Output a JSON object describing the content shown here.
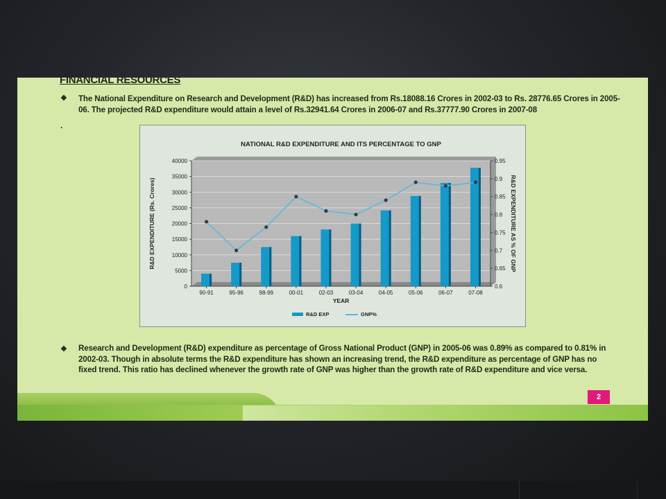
{
  "slide": {
    "heading": "FINANCIAL RESOURCES",
    "bullet_glyph": "❖",
    "paragraph1": "The National Expenditure on Research and Development (R&D) has increased from Rs.18088.16 Crores in 2002-03 to Rs. 28776.65 Crores in 2005-06. The projected R&D expenditure would attain a level of Rs.32941.64 Crores in 2006-07 and Rs.37777.90 Crores in 2007-08",
    "stray_dot": ".",
    "paragraph2": "Research and Development (R&D) expenditure as percentage of Gross National Product (GNP) in 2005-06 was 0.89% as compared to 0.81% in 2002-03. Though in absolute terms the R&D expenditure has shown an increasing trend, the R&D expenditure as percentage of GNP has no fixed trend. This ratio has declined whenever the growth rate of GNP was higher than the growth rate of R&D expenditure and vice versa.",
    "page_number": "2"
  },
  "colors": {
    "slide_bg": "#d7e9a8",
    "bar": "#1499c9",
    "line": "#5ab8e0",
    "marker": "#3a3a3a",
    "page_badge": "#e0197a"
  },
  "chart_data": {
    "type": "bar",
    "title": "NATIONAL R&D EXPENDITURE AND ITS PERCENTAGE TO GNP",
    "xlabel": "YEAR",
    "ylabel": "R&D EXPENDITURE (Rs. Crores)",
    "y2label": "R&D EXPENDITURE AS % OF GNP",
    "categories": [
      "90-91",
      "95-96",
      "98-99",
      "00-01",
      "02-03",
      "03-04",
      "04-05",
      "05-06",
      "06-07",
      "07-08"
    ],
    "ylim": [
      0,
      40000
    ],
    "yticks": [
      0,
      5000,
      10000,
      15000,
      20000,
      25000,
      30000,
      35000,
      40000
    ],
    "y2lim": [
      0.6,
      0.95
    ],
    "y2ticks": [
      "0.6",
      "0.65",
      "0.7",
      "0.75",
      "0.8",
      "0.85",
      "0.9",
      "0.95"
    ],
    "grid": true,
    "legend_position": "bottom",
    "series": [
      {
        "name": "R&D EXP",
        "type": "bar",
        "axis": "left",
        "values": [
          4000,
          7500,
          12500,
          16000,
          18088.16,
          20000,
          24200,
          28776.65,
          32941.64,
          37777.9
        ]
      },
      {
        "name": "GNP%",
        "type": "line",
        "axis": "right",
        "values": [
          0.78,
          0.7,
          0.765,
          0.85,
          0.81,
          0.8,
          0.84,
          0.89,
          0.88,
          0.89
        ]
      }
    ]
  }
}
